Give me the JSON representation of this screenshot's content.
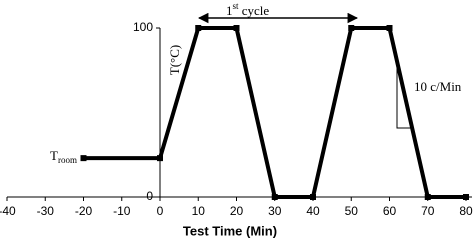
{
  "chart_data": {
    "type": "line",
    "x_label": "Test Time (Min)",
    "y_label": "T(°C)",
    "x": [
      -20,
      0,
      10,
      20,
      30,
      40,
      50,
      60,
      70,
      80
    ],
    "values": [
      23,
      23,
      100,
      100,
      0,
      0,
      100,
      100,
      0,
      0
    ],
    "color": "#000000",
    "xlim": [
      -40,
      80
    ],
    "xticks": [
      -40,
      -30,
      -20,
      -10,
      0,
      10,
      20,
      30,
      40,
      50,
      60,
      70,
      80
    ],
    "ylim": [
      0,
      100
    ],
    "yticks": [
      0,
      100
    ],
    "grid": false,
    "room_label": {
      "main": "T",
      "sub": "room"
    },
    "cycle_label": {
      "main": "1",
      "sup": "st",
      "rest": " cycle"
    },
    "rate_label": "10 c/Min"
  }
}
